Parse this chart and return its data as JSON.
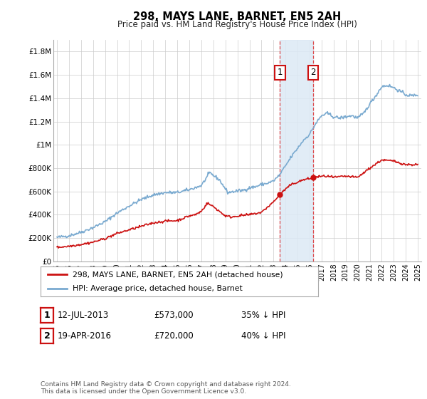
{
  "title": "298, MAYS LANE, BARNET, EN5 2AH",
  "subtitle": "Price paid vs. HM Land Registry's House Price Index (HPI)",
  "ylim": [
    0,
    1900000
  ],
  "yticks": [
    0,
    200000,
    400000,
    600000,
    800000,
    1000000,
    1200000,
    1400000,
    1600000,
    1800000
  ],
  "ytick_labels": [
    "£0",
    "£200K",
    "£400K",
    "£600K",
    "£800K",
    "£1M",
    "£1.2M",
    "£1.4M",
    "£1.6M",
    "£1.8M"
  ],
  "hpi_color": "#7aaad0",
  "hpi_fill_color": "#dce9f5",
  "price_color": "#cc1111",
  "vline_color": "#dd2222",
  "purchase1_date": 2013.53,
  "purchase1_price": 573000,
  "purchase2_date": 2016.3,
  "purchase2_price": 720000,
  "legend_label_price": "298, MAYS LANE, BARNET, EN5 2AH (detached house)",
  "legend_label_hpi": "HPI: Average price, detached house, Barnet",
  "transaction1_date_str": "12-JUL-2013",
  "transaction1_price_str": "£573,000",
  "transaction1_pct_str": "35% ↓ HPI",
  "transaction2_date_str": "19-APR-2016",
  "transaction2_price_str": "£720,000",
  "transaction2_pct_str": "40% ↓ HPI",
  "footnote": "Contains HM Land Registry data © Crown copyright and database right 2024.\nThis data is licensed under the Open Government Licence v3.0.",
  "background_color": "#ffffff",
  "grid_color": "#cccccc",
  "hpi_knots_x": [
    1995,
    1996,
    1997,
    1998,
    1999,
    2000,
    2001,
    2002,
    2003,
    2004,
    2005,
    2006,
    2007,
    2007.7,
    2008.5,
    2009.2,
    2009.8,
    2010.5,
    2011,
    2011.5,
    2012,
    2012.5,
    2013,
    2013.5,
    2014,
    2014.5,
    2015,
    2015.5,
    2016,
    2016.5,
    2017,
    2017.5,
    2018,
    2018.5,
    2019,
    2019.5,
    2020,
    2020.5,
    2021,
    2021.5,
    2022,
    2022.5,
    2023,
    2023.5,
    2024,
    2024.5,
    2025
  ],
  "hpi_knots_y": [
    205000,
    220000,
    250000,
    290000,
    340000,
    415000,
    475000,
    530000,
    570000,
    590000,
    590000,
    615000,
    650000,
    760000,
    700000,
    590000,
    600000,
    610000,
    630000,
    640000,
    660000,
    670000,
    690000,
    740000,
    820000,
    900000,
    970000,
    1040000,
    1090000,
    1180000,
    1250000,
    1270000,
    1240000,
    1230000,
    1240000,
    1250000,
    1230000,
    1270000,
    1350000,
    1420000,
    1500000,
    1510000,
    1490000,
    1460000,
    1430000,
    1420000,
    1430000
  ],
  "price_knots_x": [
    1995,
    1996,
    1997,
    1998,
    1999,
    2000,
    2001,
    2002,
    2003,
    2004,
    2005,
    2005.5,
    2006,
    2006.5,
    2007,
    2007.5,
    2008,
    2008.5,
    2009,
    2009.5,
    2010,
    2011,
    2012,
    2013,
    2013.53,
    2014,
    2014.5,
    2015,
    2015.5,
    2016,
    2016.3,
    2017,
    2017.5,
    2018,
    2019,
    2020,
    2021,
    2022,
    2023,
    2024,
    2025
  ],
  "price_knots_y": [
    120000,
    130000,
    145000,
    165000,
    195000,
    240000,
    270000,
    300000,
    330000,
    345000,
    350000,
    370000,
    390000,
    400000,
    430000,
    500000,
    470000,
    430000,
    390000,
    380000,
    390000,
    400000,
    420000,
    510000,
    573000,
    620000,
    660000,
    680000,
    700000,
    710000,
    720000,
    730000,
    730000,
    720000,
    730000,
    720000,
    800000,
    870000,
    860000,
    830000,
    830000
  ]
}
